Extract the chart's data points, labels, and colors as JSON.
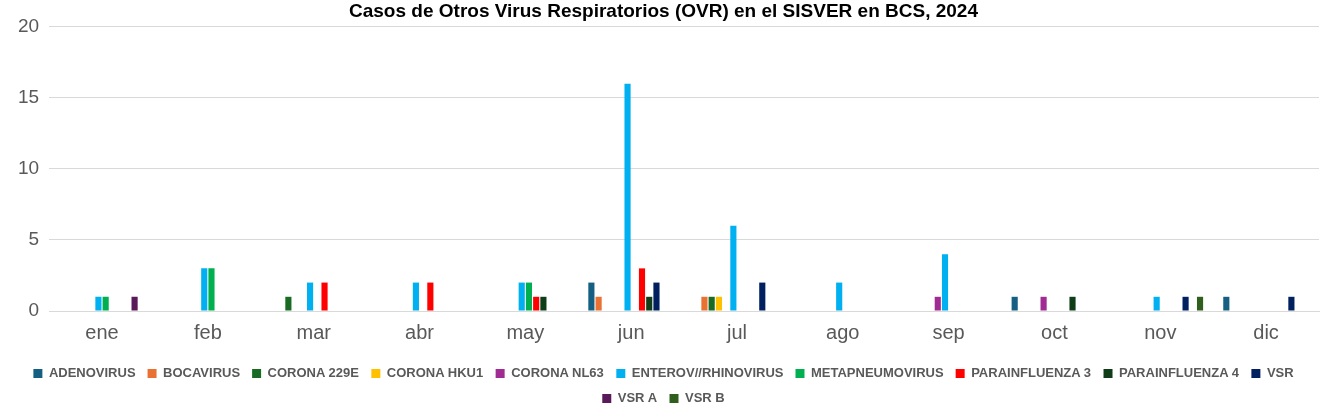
{
  "chart_data": {
    "type": "bar",
    "title": "Casos de Otros Virus Respiratorios (OVR) en el SISVER en BCS, 2024",
    "categories": [
      "ene",
      "feb",
      "mar",
      "abr",
      "may",
      "jun",
      "jul",
      "ago",
      "sep",
      "oct",
      "nov",
      "dic"
    ],
    "ylim": [
      0,
      20
    ],
    "yticks": [
      0,
      5,
      10,
      15,
      20
    ],
    "grid": "y",
    "legend": "bottom",
    "series": [
      {
        "name": "ADENOVIRUS",
        "color": "#156082",
        "values": [
          null,
          null,
          null,
          null,
          null,
          2,
          null,
          null,
          null,
          1,
          null,
          1
        ]
      },
      {
        "name": "BOCAVIRUS",
        "color": "#e97132",
        "values": [
          null,
          null,
          null,
          null,
          null,
          1,
          1,
          null,
          null,
          null,
          null,
          null
        ]
      },
      {
        "name": "CORONA 229E",
        "color": "#196b24",
        "values": [
          null,
          null,
          1,
          null,
          null,
          null,
          1,
          null,
          null,
          null,
          null,
          null
        ]
      },
      {
        "name": "CORONA HKU1",
        "color": "#ffc000",
        "values": [
          null,
          null,
          null,
          null,
          null,
          null,
          1,
          null,
          null,
          null,
          null,
          null
        ]
      },
      {
        "name": "CORONA NL63",
        "color": "#a02b93",
        "values": [
          null,
          null,
          null,
          null,
          null,
          null,
          null,
          null,
          1,
          1,
          null,
          null
        ]
      },
      {
        "name": "ENTEROV//RHINOVIRUS",
        "color": "#00b0f0",
        "values": [
          1,
          3,
          2,
          2,
          2,
          16,
          6,
          2,
          4,
          null,
          1,
          null
        ]
      },
      {
        "name": "METAPNEUMOVIRUS",
        "color": "#00b050",
        "values": [
          1,
          3,
          null,
          null,
          2,
          null,
          null,
          null,
          null,
          null,
          null,
          null
        ]
      },
      {
        "name": "PARAINFLUENZA 3",
        "color": "#ff0000",
        "values": [
          null,
          null,
          2,
          2,
          1,
          3,
          null,
          null,
          null,
          null,
          null,
          null
        ]
      },
      {
        "name": "PARAINFLUENZA 4",
        "color": "#0f3d18",
        "values": [
          null,
          null,
          null,
          null,
          1,
          1,
          null,
          null,
          null,
          1,
          null,
          null
        ]
      },
      {
        "name": "VSR",
        "color": "#002060",
        "values": [
          null,
          null,
          null,
          null,
          null,
          2,
          2,
          null,
          null,
          null,
          1,
          1
        ]
      },
      {
        "name": "VSR A",
        "color": "#5a1a5a",
        "values": [
          1,
          null,
          null,
          null,
          null,
          null,
          null,
          null,
          null,
          null,
          null,
          null
        ]
      },
      {
        "name": "VSR B",
        "color": "#305e1c",
        "values": [
          null,
          null,
          null,
          null,
          null,
          null,
          null,
          null,
          null,
          null,
          1,
          null
        ]
      }
    ]
  }
}
